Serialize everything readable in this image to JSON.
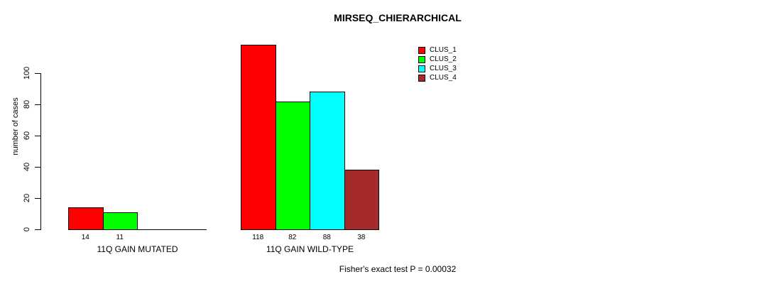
{
  "page": {
    "background": "#ffffff",
    "text_color": "#000000"
  },
  "chart_data": {
    "type": "bar",
    "title": "MIRSEQ_CHIERARCHICAL",
    "xlabel": "",
    "ylabel": "number of cases",
    "categories": [
      "11Q GAIN MUTATED",
      "11Q GAIN WILD-TYPE"
    ],
    "series": [
      {
        "name": "CLUS_1",
        "color": "#ff0000",
        "values": [
          14,
          118
        ]
      },
      {
        "name": "CLUS_2",
        "color": "#00ff00",
        "values": [
          11,
          82
        ]
      },
      {
        "name": "CLUS_3",
        "color": "#00ffff",
        "values": [
          0,
          88
        ]
      },
      {
        "name": "CLUS_4",
        "color": "#a52a2a",
        "values": [
          0,
          38
        ]
      }
    ],
    "yticks": [
      0,
      20,
      40,
      60,
      80,
      100
    ],
    "ylim": [
      0,
      120
    ],
    "grid": false,
    "legend_position": "top-right",
    "annotation": "Fisher's exact test P = 0.00032"
  }
}
